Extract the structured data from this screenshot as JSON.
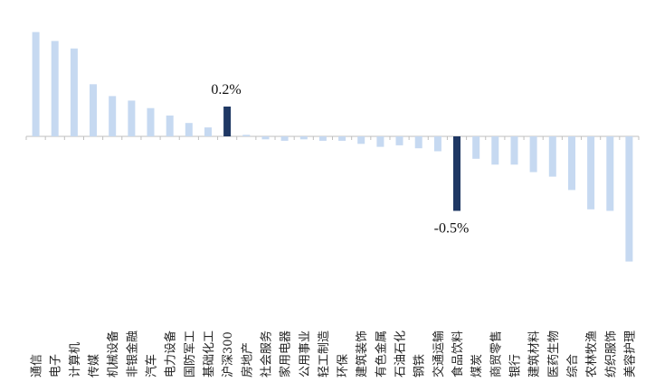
{
  "chart_data": {
    "type": "bar",
    "title": "",
    "xlabel": "",
    "ylabel": "",
    "ylim": [
      -0.85,
      0.75
    ],
    "grid": false,
    "legend": "none",
    "categories": [
      "通信",
      "电子",
      "计算机",
      "传媒",
      "机械设备",
      "非银金融",
      "汽车",
      "电力设备",
      "国防军工",
      "基础化工",
      "沪深300",
      "房地产",
      "社会服务",
      "家用电器",
      "公用事业",
      "轻工制造",
      "环保",
      "建筑装饰",
      "有色金属",
      "石油石化",
      "钢铁",
      "交通运输",
      "食品饮料",
      "煤炭",
      "商贸零售",
      "银行",
      "建筑材料",
      "医药生物",
      "综合",
      "农林牧渔",
      "纺织服饰",
      "美容护理"
    ],
    "values": [
      0.7,
      0.64,
      0.59,
      0.35,
      0.27,
      0.24,
      0.19,
      0.14,
      0.09,
      0.06,
      0.2,
      0.01,
      -0.02,
      -0.03,
      -0.02,
      -0.03,
      -0.03,
      -0.05,
      -0.07,
      -0.06,
      -0.08,
      -0.1,
      -0.5,
      -0.15,
      -0.19,
      -0.19,
      -0.24,
      -0.27,
      -0.36,
      -0.49,
      -0.5,
      -0.84
    ],
    "highlight": [
      "沪深300",
      "食品饮料"
    ],
    "data_labels": {
      "沪深300": "0.2%",
      "食品饮料": "-0.5%"
    },
    "colors": {
      "bar": "#c6d9f1",
      "highlight": "#1f3864",
      "axis": "#bfbfbf"
    }
  }
}
